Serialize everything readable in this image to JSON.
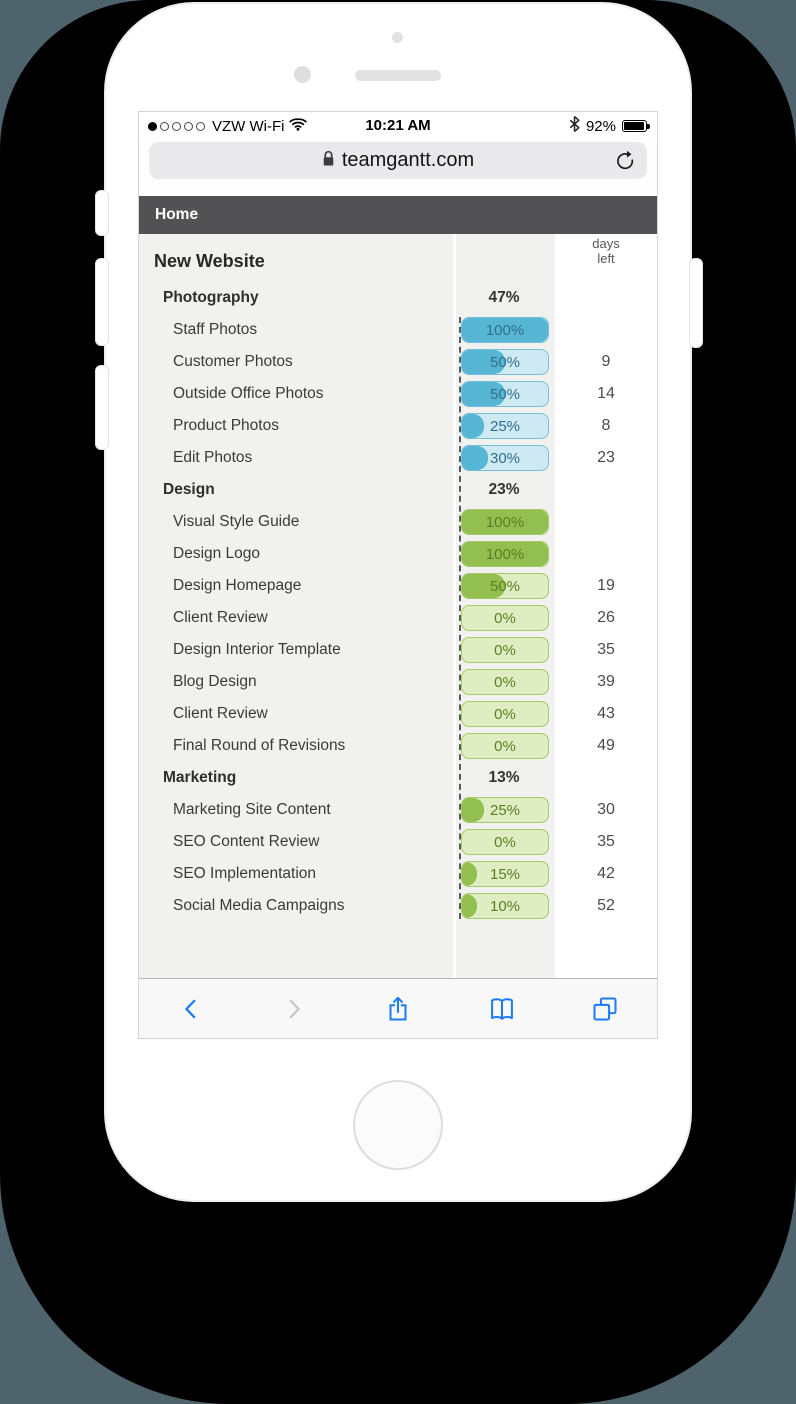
{
  "status_bar": {
    "signal": {
      "filled_dots": 1,
      "total_dots": 5,
      "icon": "signal-dots-icon"
    },
    "carrier": "VZW Wi-Fi",
    "wifi_icon": "wifi-icon",
    "time": "10:21 AM",
    "bluetooth_icon": "bluetooth-icon",
    "battery_percent": "92%",
    "battery_icon": "battery-icon"
  },
  "browser": {
    "address_bar": {
      "lock_icon": "lock-icon",
      "url": "teamgantt.com",
      "refresh_icon": "refresh-icon"
    },
    "toolbar_icons": [
      "back-icon",
      "forward-icon",
      "share-icon",
      "bookmarks-icon",
      "tabs-icon"
    ]
  },
  "page": {
    "nav_title": "Home",
    "project_title": "New Website",
    "days_left_header_line1": "days",
    "days_left_header_line2": "left",
    "groups": [
      {
        "name": "Photography",
        "percent_label": "47%",
        "theme": "blue",
        "tasks": [
          {
            "name": "Staff Photos",
            "percent_label": "100%",
            "fill": 100,
            "days_left": ""
          },
          {
            "name": "Customer Photos",
            "percent_label": "50%",
            "fill": 50,
            "days_left": "9"
          },
          {
            "name": "Outside Office Photos",
            "percent_label": "50%",
            "fill": 50,
            "days_left": "14"
          },
          {
            "name": "Product Photos",
            "percent_label": "25%",
            "fill": 25,
            "days_left": "8"
          },
          {
            "name": "Edit Photos",
            "percent_label": "30%",
            "fill": 30,
            "days_left": "23"
          }
        ]
      },
      {
        "name": "Design",
        "percent_label": "23%",
        "theme": "green",
        "tasks": [
          {
            "name": "Visual Style Guide",
            "percent_label": "100%",
            "fill": 100,
            "days_left": ""
          },
          {
            "name": "Design Logo",
            "percent_label": "100%",
            "fill": 100,
            "days_left": ""
          },
          {
            "name": "Design Homepage",
            "percent_label": "50%",
            "fill": 50,
            "days_left": "19"
          },
          {
            "name": "Client Review",
            "percent_label": "0%",
            "fill": 0,
            "days_left": "26"
          },
          {
            "name": "Design Interior Template",
            "percent_label": "0%",
            "fill": 0,
            "days_left": "35"
          },
          {
            "name": "Blog Design",
            "percent_label": "0%",
            "fill": 0,
            "days_left": "39"
          },
          {
            "name": "Client Review",
            "percent_label": "0%",
            "fill": 0,
            "days_left": "43"
          },
          {
            "name": "Final Round of Revisions",
            "percent_label": "0%",
            "fill": 0,
            "days_left": "49"
          }
        ]
      },
      {
        "name": "Marketing",
        "percent_label": "13%",
        "theme": "green",
        "tasks": [
          {
            "name": "Marketing Site Content",
            "percent_label": "25%",
            "fill": 25,
            "days_left": "30"
          },
          {
            "name": "SEO Content Review",
            "percent_label": "0%",
            "fill": 0,
            "days_left": "35"
          },
          {
            "name": "SEO Implementation",
            "percent_label": "15%",
            "fill": 15,
            "days_left": "42"
          },
          {
            "name": "Social Media Campaigns",
            "percent_label": "10%",
            "fill": 10,
            "days_left": "52"
          }
        ]
      }
    ]
  },
  "colors": {
    "backdrop": "#4f636c",
    "card": "#000000",
    "nav_bar": "#525254",
    "table_column_bg": "#f1f1ef",
    "safari_blue": "#1a7af8",
    "disabled_gray": "#c6c6c8",
    "blue_fill": "#57b6d3",
    "blue_track": "#cfe9f2",
    "blue_border": "#74bed8",
    "blue_text": "#2e6f8a",
    "green_fill": "#92bf4f",
    "green_track": "#dfedc3",
    "green_border": "#a5c868",
    "green_text": "#5b7d20"
  }
}
